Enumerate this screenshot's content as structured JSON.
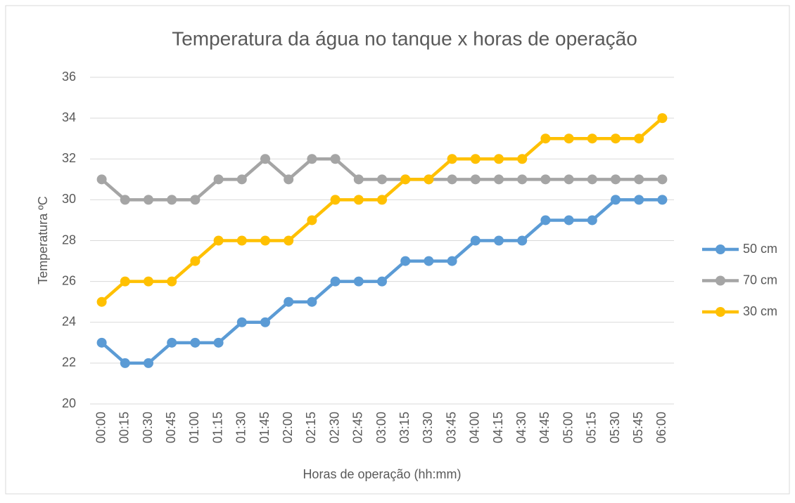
{
  "chart_data": {
    "type": "line",
    "title": "Temperatura da água no tanque x horas de operação",
    "xlabel": "Horas de operação (hh:mm)",
    "ylabel": "Temperatura ºC",
    "categories": [
      "00:00",
      "00:15",
      "00:30",
      "00:45",
      "01:00",
      "01:15",
      "01:30",
      "01:45",
      "02:00",
      "02:15",
      "02:30",
      "02:45",
      "03:00",
      "03:15",
      "03:30",
      "03:45",
      "04:00",
      "04:15",
      "04:30",
      "04:45",
      "05:00",
      "05:15",
      "05:30",
      "05:45",
      "06:00"
    ],
    "series": [
      {
        "name": "50 cm",
        "color": "#5b9bd5",
        "values": [
          23,
          22,
          22,
          23,
          23,
          23,
          24,
          24,
          25,
          25,
          26,
          26,
          26,
          27,
          27,
          27,
          28,
          28,
          28,
          29,
          29,
          29,
          30,
          30,
          30
        ]
      },
      {
        "name": "70 cm",
        "color": "#a5a5a5",
        "values": [
          31,
          30,
          30,
          30,
          30,
          31,
          31,
          32,
          31,
          32,
          32,
          31,
          31,
          31,
          31,
          31,
          31,
          31,
          31,
          31,
          31,
          31,
          31,
          31,
          31
        ]
      },
      {
        "name": "30 cm",
        "color": "#ffc000",
        "values": [
          25,
          26,
          26,
          26,
          27,
          28,
          28,
          28,
          28,
          29,
          30,
          30,
          30,
          31,
          31,
          32,
          32,
          32,
          32,
          33,
          33,
          33,
          33,
          33,
          34
        ]
      }
    ],
    "ylim": [
      20,
      36
    ],
    "yticks": [
      20,
      22,
      24,
      26,
      28,
      30,
      32,
      34,
      36
    ],
    "grid": true,
    "legend": "right"
  }
}
